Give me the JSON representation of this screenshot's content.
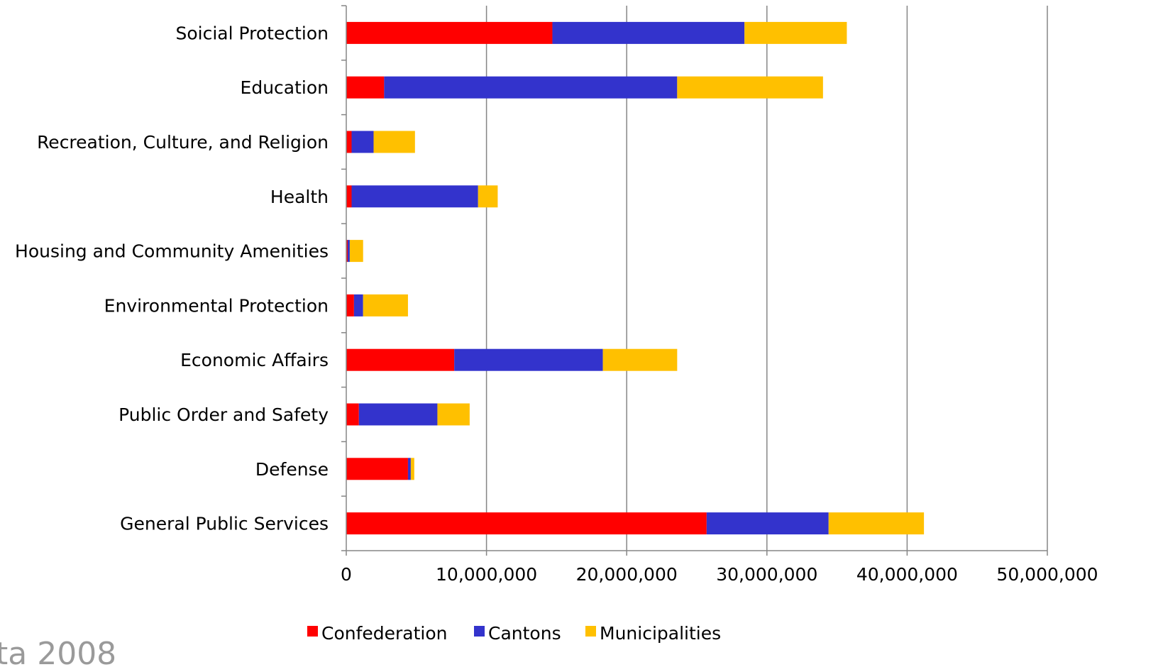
{
  "chart_data": {
    "type": "bar",
    "orientation": "horizontal",
    "stacked": true,
    "categories": [
      "General Public Services",
      "Defense",
      "Public Order and Safety",
      "Economic Affairs",
      "Environmental Protection",
      "Housing and Community Amenities",
      "Health",
      "Recreation, Culture, and Religion",
      "Education",
      "Soicial Protection"
    ],
    "series": [
      {
        "name": "Confederation",
        "color": "#ff0000",
        "values": [
          25700000,
          4400000,
          900000,
          7700000,
          550000,
          100000,
          380000,
          380000,
          2700000,
          14700000
        ]
      },
      {
        "name": "Cantons",
        "color": "#3333cc",
        "values": [
          8700000,
          200000,
          5600000,
          10600000,
          650000,
          150000,
          9020000,
          1570000,
          20900000,
          13700000
        ]
      },
      {
        "name": "Municipalities",
        "color": "#ffc000",
        "values": [
          6800000,
          250000,
          2300000,
          5300000,
          3200000,
          950000,
          1400000,
          2950000,
          10400000,
          7300000
        ]
      }
    ],
    "xlim": [
      0,
      50000000
    ],
    "xticks": [
      "0",
      "10,000,000",
      "20,000,000",
      "30,000,000",
      "40,000,000",
      "50,000,000"
    ],
    "grid": "vertical",
    "legend": "bottom",
    "title": "",
    "xlabel": "",
    "ylabel": "",
    "footnote": "ta 2008"
  }
}
